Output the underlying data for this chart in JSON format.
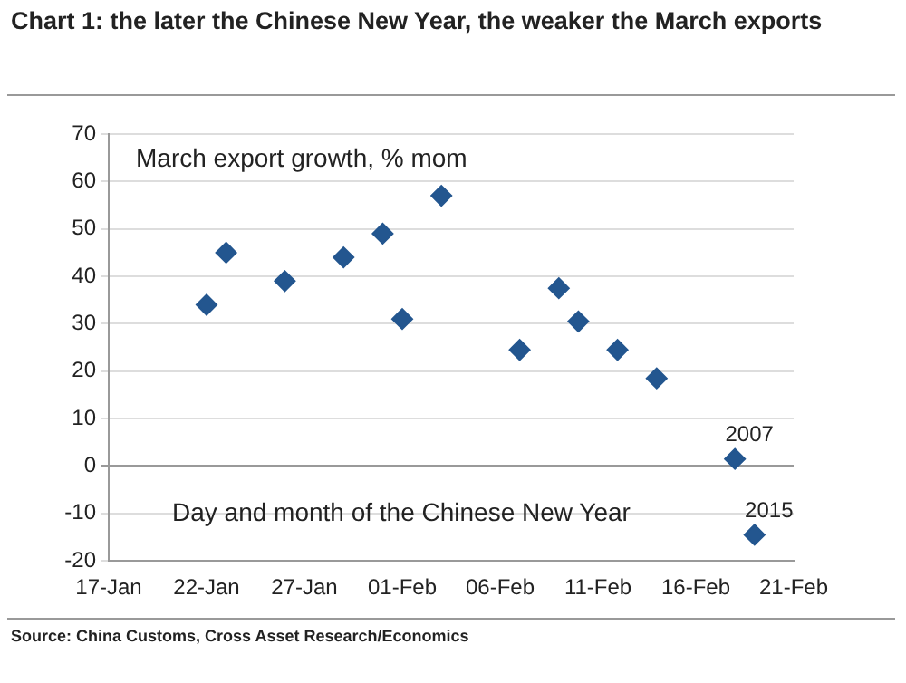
{
  "chart_data": {
    "type": "scatter",
    "title": "Chart 1: the later the Chinese New Year, the weaker the March exports",
    "ylabel": "March export growth, % mom",
    "xlabel": "Day and month of the Chinese New Year",
    "x": [
      "--01-22",
      "--01-23",
      "--01-26",
      "--01-29",
      "--01-31",
      "--02-01",
      "--02-03",
      "--02-07",
      "--02-09",
      "--02-10",
      "--02-12",
      "--02-14",
      "--02-18",
      "--02-19"
    ],
    "series": [
      {
        "color": "#23568f",
        "values": [
          34,
          45,
          39,
          44,
          49,
          31,
          57,
          24.5,
          37.5,
          30.5,
          24.5,
          18.5,
          1.5,
          -14.5
        ]
      }
    ],
    "xlim": [
      "--01-17",
      "--02-21"
    ],
    "xticks": [
      {
        "value": "--01-17",
        "label": "17-Jan"
      },
      {
        "value": "--01-22",
        "label": "22-Jan"
      },
      {
        "value": "--01-27",
        "label": "27-Jan"
      },
      {
        "value": "--02-01",
        "label": "01-Feb"
      },
      {
        "value": "--02-06",
        "label": "06-Feb"
      },
      {
        "value": "--02-11",
        "label": "11-Feb"
      },
      {
        "value": "--02-16",
        "label": "16-Feb"
      },
      {
        "value": "--02-21",
        "label": "21-Feb"
      }
    ],
    "ylim": [
      -20,
      70
    ],
    "yticks": [
      -20,
      -10,
      0,
      10,
      20,
      30,
      40,
      50,
      60,
      70
    ],
    "grid": "y",
    "legend": false,
    "marker": "diamond",
    "annotations": [
      {
        "text": "2007",
        "x": "--02-18",
        "y": 1.5
      },
      {
        "text": "2015",
        "x": "--02-19",
        "y": -14.5
      },
      "Source: China Customs, Cross Asset Research/Economics"
    ]
  }
}
